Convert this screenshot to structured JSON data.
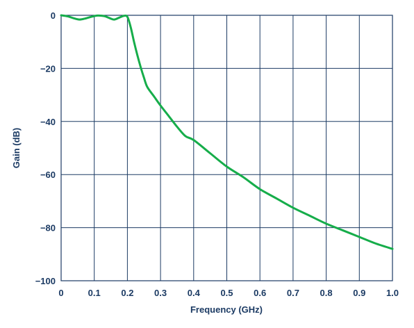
{
  "colors": {
    "axis_text": "#1b3a63",
    "grid": "#1b3a63",
    "series": "#16ad4a",
    "background": "#ffffff"
  },
  "chart_data": {
    "type": "line",
    "title": "",
    "xlabel": "Frequency (GHz)",
    "ylabel": "Gain (dB)",
    "xlim": [
      0,
      1.0
    ],
    "ylim": [
      -100,
      0
    ],
    "grid": true,
    "x_ticks": [
      0,
      0.1,
      0.2,
      0.3,
      0.4,
      0.5,
      0.6,
      0.7,
      0.8,
      0.9,
      1.0
    ],
    "x_tick_labels": [
      "0",
      "0.1",
      "0.2",
      "0.3",
      "0.4",
      "0.5",
      "0.6",
      "0.7",
      "0.8",
      "0.9",
      "1.0"
    ],
    "y_ticks": [
      0,
      -20,
      -40,
      -60,
      -80,
      -100
    ],
    "y_tick_labels": [
      "0",
      "−20",
      "−40",
      "−60",
      "−80",
      "−100"
    ],
    "series": [
      {
        "x": [
          0,
          0.02,
          0.04,
          0.055,
          0.07,
          0.09,
          0.11,
          0.13,
          0.145,
          0.16,
          0.175,
          0.19,
          0.2,
          0.21,
          0.22,
          0.23,
          0.24,
          0.25,
          0.26,
          0.28,
          0.3,
          0.325,
          0.35,
          0.375,
          0.4,
          0.45,
          0.5,
          0.55,
          0.6,
          0.65,
          0.7,
          0.75,
          0.8,
          0.85,
          0.9,
          0.95,
          1.0
        ],
        "y": [
          0,
          -0.4,
          -1.2,
          -1.6,
          -1.3,
          -0.6,
          -0.1,
          -0.3,
          -1.0,
          -1.6,
          -0.9,
          -0.2,
          -0.6,
          -4.5,
          -10,
          -15,
          -19.5,
          -23.5,
          -27,
          -30.5,
          -34,
          -38,
          -42,
          -45.5,
          -47,
          -52,
          -57,
          -61,
          -65.5,
          -69,
          -72.5,
          -75.5,
          -78.5,
          -81,
          -83.5,
          -86,
          -88
        ]
      }
    ]
  }
}
